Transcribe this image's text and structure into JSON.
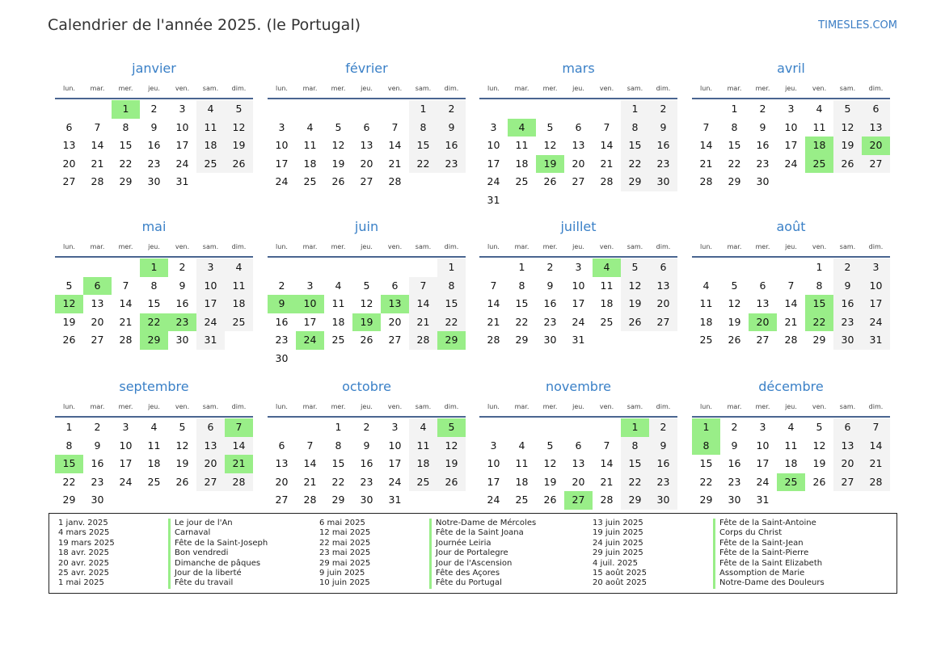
{
  "title": "Calendrier de l'année 2025. (le Portugal)",
  "brand": "TIMESLES.COM",
  "year": 2025,
  "colors": {
    "holiday": "#99ee88",
    "weekend": "#f3f3f3",
    "accent": "#3a80c7"
  },
  "weekdays": [
    "lun.",
    "mar.",
    "mer.",
    "jeu.",
    "ven.",
    "sam.",
    "dim."
  ],
  "months": [
    {
      "name": "janvier",
      "holidays": [
        1
      ]
    },
    {
      "name": "février",
      "holidays": []
    },
    {
      "name": "mars",
      "holidays": [
        4,
        19
      ]
    },
    {
      "name": "avril",
      "holidays": [
        18,
        20,
        25
      ]
    },
    {
      "name": "mai",
      "holidays": [
        1,
        6,
        12,
        22,
        23,
        29
      ]
    },
    {
      "name": "juin",
      "holidays": [
        9,
        10,
        13,
        19,
        24,
        29
      ]
    },
    {
      "name": "juillet",
      "holidays": [
        4
      ]
    },
    {
      "name": "août",
      "holidays": [
        15,
        20,
        22
      ]
    },
    {
      "name": "septembre",
      "holidays": [
        7,
        15,
        21
      ]
    },
    {
      "name": "octobre",
      "holidays": [
        5
      ]
    },
    {
      "name": "novembre",
      "holidays": [
        1,
        27
      ]
    },
    {
      "name": "décembre",
      "holidays": [
        1,
        8,
        25
      ]
    }
  ],
  "legend": [
    {
      "date": "1 janv. 2025",
      "name": "Le jour de l'An"
    },
    {
      "date": "4 mars 2025",
      "name": "Carnaval"
    },
    {
      "date": "19 mars 2025",
      "name": "Fête de la Saint-Joseph"
    },
    {
      "date": "18 avr. 2025",
      "name": "Bon vendredi"
    },
    {
      "date": "20 avr. 2025",
      "name": "Dimanche de pâques"
    },
    {
      "date": "25 avr. 2025",
      "name": "Jour de la liberté"
    },
    {
      "date": "1 mai 2025",
      "name": "Fête du travail"
    },
    {
      "date": "6 mai 2025",
      "name": "Notre-Dame de Mércoles"
    },
    {
      "date": "12 mai 2025",
      "name": "Fête de la Saint Joana"
    },
    {
      "date": "22 mai 2025",
      "name": "Journée Leiria"
    },
    {
      "date": "23 mai 2025",
      "name": "Jour de Portalegre"
    },
    {
      "date": "29 mai 2025",
      "name": "Jour de l'Ascension"
    },
    {
      "date": "9 juin 2025",
      "name": "Fête des Açores"
    },
    {
      "date": "10 juin 2025",
      "name": "Fête du Portugal"
    },
    {
      "date": "13 juin 2025",
      "name": "Fête de la Saint-Antoine"
    },
    {
      "date": "19 juin 2025",
      "name": "Corps du Christ"
    },
    {
      "date": "24 juin 2025",
      "name": "Fête de la Saint-Jean"
    },
    {
      "date": "29 juin 2025",
      "name": "Fête de la Saint-Pierre"
    },
    {
      "date": "4 juil. 2025",
      "name": "Fête de la Saint Elizabeth"
    },
    {
      "date": "15 août 2025",
      "name": "Assomption de Marie"
    },
    {
      "date": "20 août 2025",
      "name": "Notre-Dame des Douleurs"
    }
  ]
}
